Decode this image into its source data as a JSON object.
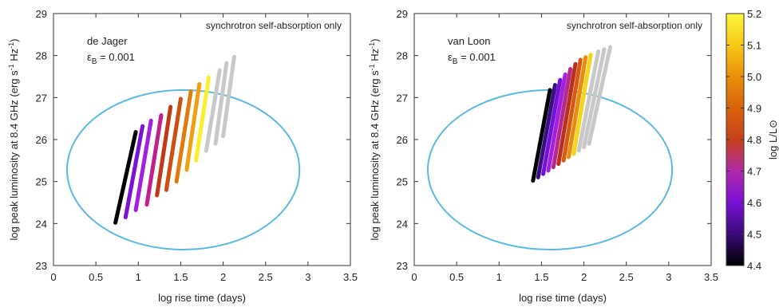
{
  "colorbar": {
    "label": "log L/L⊙",
    "min": 4.4,
    "max": 5.2,
    "ticks": [
      "4.4",
      "4.5",
      "4.6",
      "4.7",
      "4.8",
      "4.9",
      "5.0",
      "5.1",
      "5.2"
    ],
    "colors": [
      "#000000",
      "#3a0a78",
      "#7a10d8",
      "#b02aa8",
      "#c8401a",
      "#d8620c",
      "#ea8f0a",
      "#f6c817",
      "#fbf63c"
    ]
  },
  "chart_data": [
    {
      "type": "line",
      "annotation": "synchrotron self-absorption only",
      "label_model": "de Jager",
      "label_param": "ε",
      "label_param_sub": "B",
      "label_param_value": " = 0.001",
      "xlabel": "log rise time (days)",
      "ylabel": "log peak luminosity at 8.4 GHz (erg s⁻¹ Hz⁻¹)",
      "ylabel_parts": [
        "log peak luminosity at 8.4 GHz (erg s",
        "-1",
        " Hz",
        "-1",
        ")"
      ],
      "xlim": [
        0,
        3.5
      ],
      "ylim": [
        23,
        29
      ],
      "xticks": [
        "0",
        "0.5",
        "1",
        "1.5",
        "2",
        "2.5",
        "3",
        "3.5"
      ],
      "yticks": [
        "23",
        "24",
        "25",
        "26",
        "27",
        "28",
        "29"
      ],
      "ellipse": {
        "cx": 1.53,
        "cy": 25.28,
        "rx": 1.37,
        "ry": 1.9,
        "color": "#5bb8e0"
      },
      "series": [
        {
          "x": [
            0.73,
            0.97
          ],
          "y": [
            24.02,
            26.18
          ],
          "color": "#000000"
        },
        {
          "x": [
            0.85,
            1.05
          ],
          "y": [
            24.15,
            26.32
          ],
          "color": "#7b12d6"
        },
        {
          "x": [
            0.97,
            1.15
          ],
          "y": [
            24.32,
            26.45
          ],
          "color": "#a21fe0"
        },
        {
          "x": [
            1.1,
            1.27
          ],
          "y": [
            24.45,
            26.58
          ],
          "color": "#c0208e"
        },
        {
          "x": [
            1.22,
            1.38
          ],
          "y": [
            24.67,
            26.78
          ],
          "color": "#c03a1a"
        },
        {
          "x": [
            1.33,
            1.5
          ],
          "y": [
            24.8,
            26.97
          ],
          "color": "#cc4f12"
        },
        {
          "x": [
            1.45,
            1.62
          ],
          "y": [
            25.0,
            27.15
          ],
          "color": "#e07a0c"
        },
        {
          "x": [
            1.57,
            1.72
          ],
          "y": [
            25.28,
            27.32
          ],
          "color": "#ef9f10"
        },
        {
          "x": [
            1.68,
            1.83
          ],
          "y": [
            25.5,
            27.48
          ],
          "color": "#f9ef2c"
        },
        {
          "x": [
            1.8,
            1.96
          ],
          "y": [
            25.73,
            27.65
          ],
          "color": "#c8c8c8"
        },
        {
          "x": [
            1.91,
            2.04
          ],
          "y": [
            25.9,
            27.82
          ],
          "color": "#c8c8c8"
        },
        {
          "x": [
            2.0,
            2.13
          ],
          "y": [
            26.08,
            27.97
          ],
          "color": "#c8c8c8"
        }
      ]
    },
    {
      "type": "line",
      "annotation": "synchrotron self-absorption only",
      "label_model": "van Loon",
      "label_param": "ε",
      "label_param_sub": "B",
      "label_param_value": " = 0.001",
      "xlabel": "log rise time (days)",
      "ylabel": "log peak luminosity at 8.4 GHz (erg s⁻¹ Hz⁻¹)",
      "ylabel_parts": [
        "log peak luminosity at 8.4 GHz (erg s",
        "-1",
        " Hz",
        "-1",
        ")"
      ],
      "xlim": [
        0,
        3.5
      ],
      "ylim": [
        23,
        29
      ],
      "xticks": [
        "0",
        "0.5",
        "1",
        "1.5",
        "2",
        "2.5",
        "3",
        "3.5"
      ],
      "yticks": [
        "23",
        "24",
        "25",
        "26",
        "27",
        "28",
        "29"
      ],
      "ellipse": {
        "cx": 1.6,
        "cy": 25.28,
        "rx": 1.44,
        "ry": 1.9,
        "color": "#5bb8e0"
      },
      "series": [
        {
          "x": [
            1.4,
            1.6
          ],
          "y": [
            25.02,
            27.18
          ],
          "color": "#000000"
        },
        {
          "x": [
            1.46,
            1.66
          ],
          "y": [
            25.1,
            27.3
          ],
          "color": "#3b0e86"
        },
        {
          "x": [
            1.52,
            1.72
          ],
          "y": [
            25.18,
            27.42
          ],
          "color": "#7412d6"
        },
        {
          "x": [
            1.58,
            1.78
          ],
          "y": [
            25.26,
            27.55
          ],
          "color": "#a51fe0"
        },
        {
          "x": [
            1.64,
            1.84
          ],
          "y": [
            25.34,
            27.68
          ],
          "color": "#b42a8c"
        },
        {
          "x": [
            1.7,
            1.9
          ],
          "y": [
            25.42,
            27.8
          ],
          "color": "#b8301e"
        },
        {
          "x": [
            1.76,
            1.96
          ],
          "y": [
            25.5,
            27.9
          ],
          "color": "#d85a10"
        },
        {
          "x": [
            1.82,
            2.02
          ],
          "y": [
            25.58,
            27.96
          ],
          "color": "#ea8a0e"
        },
        {
          "x": [
            1.88,
            2.08
          ],
          "y": [
            25.66,
            28.02
          ],
          "color": "#f6d41c"
        },
        {
          "x": [
            1.94,
            2.17
          ],
          "y": [
            25.74,
            28.1
          ],
          "color": "#c8c8c8"
        },
        {
          "x": [
            2.0,
            2.24
          ],
          "y": [
            25.82,
            28.15
          ],
          "color": "#c8c8c8"
        },
        {
          "x": [
            2.06,
            2.31
          ],
          "y": [
            25.9,
            28.2
          ],
          "color": "#c8c8c8"
        }
      ]
    }
  ]
}
